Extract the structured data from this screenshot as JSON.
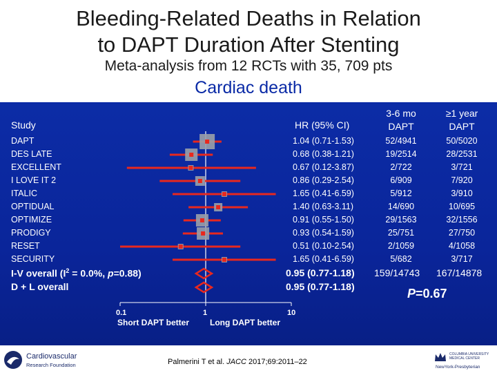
{
  "title_lines": [
    "Bleeding-Related Deaths in Relation",
    "to DAPT Duration After Stenting"
  ],
  "subtitle": "Meta-analysis from 12 RCTs with 35, 709 pts",
  "heading": "Cardiac death",
  "table": {
    "study_header": "Study",
    "hr_header": "HR (95% CI)",
    "col1_header": [
      "3-6 mo",
      "DAPT"
    ],
    "col2_header": [
      "≥1 year",
      "DAPT"
    ],
    "rows": [
      {
        "study": "DAPT",
        "hr_text": "1.04 (0.71-1.53)",
        "hr": 1.04,
        "lo": 0.71,
        "hi": 1.53,
        "short": "52/4941",
        "long": "50/5020"
      },
      {
        "study": "DES LATE",
        "hr_text": "0.68 (0.38-1.21)",
        "hr": 0.68,
        "lo": 0.38,
        "hi": 1.21,
        "short": "19/2514",
        "long": "28/2531"
      },
      {
        "study": "EXCELLENT",
        "hr_text": "0.67 (0.12-3.87)",
        "hr": 0.67,
        "lo": 0.12,
        "hi": 3.87,
        "short": "2/722",
        "long": "3/721"
      },
      {
        "study": "I LOVE IT 2",
        "hr_text": "0.86 (0.29-2.54)",
        "hr": 0.86,
        "lo": 0.29,
        "hi": 2.54,
        "short": "6/909",
        "long": "7/920"
      },
      {
        "study": "ITALIC",
        "hr_text": "1.65 (0.41-6.59)",
        "hr": 1.65,
        "lo": 0.41,
        "hi": 6.59,
        "short": "5/912",
        "long": "3/910"
      },
      {
        "study": "OPTIDUAL",
        "hr_text": "1.40 (0.63-3.11)",
        "hr": 1.4,
        "lo": 0.63,
        "hi": 3.11,
        "short": "14/690",
        "long": "10/695"
      },
      {
        "study": "OPTIMIZE",
        "hr_text": "0.91 (0.55-1.50)",
        "hr": 0.91,
        "lo": 0.55,
        "hi": 1.5,
        "short": "29/1563",
        "long": "32/1556"
      },
      {
        "study": "PRODIGY",
        "hr_text": "0.93 (0.54-1.59)",
        "hr": 0.93,
        "lo": 0.54,
        "hi": 1.59,
        "short": "25/751",
        "long": "27/750"
      },
      {
        "study": "RESET",
        "hr_text": "0.51 (0.10-2.54)",
        "hr": 0.51,
        "lo": 0.1,
        "hi": 2.54,
        "short": "2/1059",
        "long": "4/1058"
      },
      {
        "study": "SECURITY",
        "hr_text": "1.65 (0.41-6.59)",
        "hr": 1.65,
        "lo": 0.41,
        "hi": 6.59,
        "short": "5/682",
        "long": "3/717"
      }
    ],
    "overall": [
      {
        "label_pre": "I-V overall (I",
        "label_sup": "2",
        "label_post": " = 0.0%, ",
        "label_p": "p",
        "label_end": "=0.88)",
        "hr_text": "0.95 (0.77-1.18)",
        "hr": 0.95,
        "lo": 0.77,
        "hi": 1.18
      },
      {
        "label_pre": "D + L overall",
        "label_sup": "",
        "label_post": "",
        "label_p": "",
        "label_end": "",
        "hr_text": "0.95 (0.77-1.18)",
        "hr": 0.95,
        "lo": 0.77,
        "hi": 1.18
      }
    ],
    "totals": {
      "short": "159/14743",
      "long": "167/14878"
    },
    "p_value": {
      "p": "P",
      "rest": "=0.67"
    }
  },
  "chart_data": {
    "type": "forest",
    "x_scale": "log",
    "xlim": [
      0.1,
      10
    ],
    "x_ticks": [
      "0.1",
      "1",
      "10"
    ],
    "reference_line": 1,
    "x_left_label": "Short DAPT better",
    "x_right_label": "Long DAPT better"
  },
  "citation": {
    "authors": "Palmerini T et al. ",
    "journal": "JACC",
    "rest": " 2017;69:2011–22"
  },
  "logo_left": {
    "line1": "Cardiovascular",
    "line2": "Research Foundation"
  },
  "logo_right": {
    "line1": "COLUMBIA UNIVERSITY MEDICAL CENTER",
    "line2": "NewYork-Presbyterian"
  },
  "colors": {
    "panel": "#0a259a",
    "ci_line": "#e8281e",
    "box": "#9aa0a8",
    "diamond": "#e8281e",
    "heading": "#0a2aa6"
  }
}
